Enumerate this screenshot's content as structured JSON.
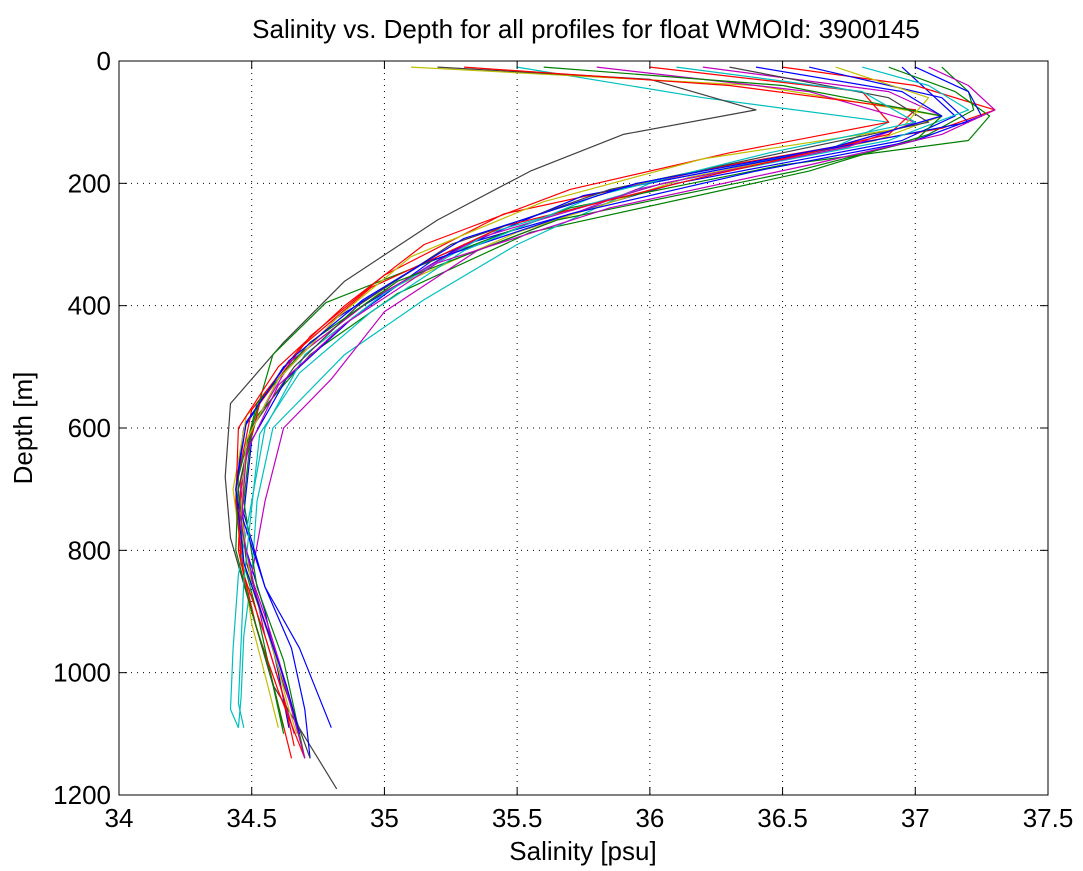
{
  "chart_data": {
    "type": "line",
    "title": "Salinity vs. Depth for all profiles for float WMOId: 3900145",
    "xlabel": "Salinity [psu]",
    "ylabel": "Depth [m]",
    "xlim": [
      34,
      37.5
    ],
    "ylim": [
      0,
      1200
    ],
    "y_reversed": true,
    "grid": true,
    "grid_style": "dotted",
    "xticks": [
      34,
      34.5,
      35,
      35.5,
      36,
      36.5,
      37,
      37.5
    ],
    "xtick_labels": [
      "34",
      "34.5",
      "35",
      "35.5",
      "36",
      "36.5",
      "37",
      "37.5"
    ],
    "yticks": [
      0,
      200,
      400,
      600,
      800,
      1000,
      1200
    ],
    "ytick_labels": [
      "0",
      "200",
      "400",
      "600",
      "800",
      "1000",
      "1200"
    ],
    "series_colors": [
      "#0000ff",
      "#008000",
      "#ff0000",
      "#00bfbf",
      "#bf00bf",
      "#bfbf00",
      "#404040"
    ],
    "series": [
      {
        "color": "#0000ff",
        "depth": [
          10,
          50,
          90,
          130,
          200,
          300,
          400,
          500,
          600,
          700,
          800,
          900,
          1000,
          1090
        ],
        "salinity": [
          36.95,
          37.05,
          37.15,
          36.95,
          36.1,
          35.3,
          34.92,
          34.62,
          34.47,
          34.44,
          34.48,
          34.55,
          34.6,
          34.64
        ]
      },
      {
        "color": "#008000",
        "depth": [
          10,
          50,
          80,
          120,
          180,
          280,
          380,
          480,
          580,
          700,
          820,
          920,
          1020,
          1100
        ],
        "salinity": [
          37.1,
          37.2,
          37.22,
          37.05,
          36.6,
          35.55,
          35.05,
          34.72,
          34.52,
          34.45,
          34.47,
          34.53,
          34.58,
          34.62
        ]
      },
      {
        "color": "#ff0000",
        "depth": [
          10,
          40,
          80,
          110,
          170,
          250,
          350,
          450,
          560,
          680,
          800,
          900,
          1000,
          1140
        ],
        "salinity": [
          36.5,
          37.0,
          37.3,
          37.1,
          36.3,
          35.45,
          35.0,
          34.72,
          34.53,
          34.46,
          34.45,
          34.5,
          34.57,
          34.65
        ]
      },
      {
        "color": "#00bfbf",
        "depth": [
          10,
          60,
          100,
          140,
          200,
          300,
          390,
          480,
          600,
          720,
          840,
          940,
          1040,
          1090
        ],
        "salinity": [
          35.5,
          36.2,
          36.9,
          36.7,
          36.0,
          35.5,
          35.15,
          34.85,
          34.58,
          34.52,
          34.5,
          34.47,
          34.46,
          34.45
        ]
      },
      {
        "color": "#bf00bf",
        "depth": [
          10,
          50,
          90,
          140,
          210,
          310,
          410,
          520,
          600,
          720,
          840,
          940,
          1040,
          1100
        ],
        "salinity": [
          36.2,
          36.9,
          37.1,
          36.7,
          35.95,
          35.35,
          35.0,
          34.8,
          34.62,
          34.55,
          34.5,
          34.55,
          34.62,
          34.66
        ]
      },
      {
        "color": "#bfbf00",
        "depth": [
          10,
          40,
          90,
          130,
          190,
          280,
          380,
          480,
          580,
          700,
          800,
          920,
          1020,
          1090
        ],
        "salinity": [
          35.1,
          36.4,
          37.1,
          36.85,
          36.15,
          35.5,
          34.98,
          34.68,
          34.48,
          34.43,
          34.46,
          34.5,
          34.56,
          34.6
        ]
      },
      {
        "color": "#404040",
        "depth": [
          10,
          30,
          80,
          120,
          180,
          260,
          360,
          460,
          560,
          680,
          780,
          900,
          1020,
          1190
        ],
        "salinity": [
          35.2,
          36.0,
          36.4,
          35.9,
          35.55,
          35.2,
          34.85,
          34.62,
          34.42,
          34.4,
          34.42,
          34.5,
          34.58,
          34.82
        ]
      },
      {
        "color": "#0000ff",
        "depth": [
          10,
          60,
          100,
          150,
          220,
          320,
          420,
          520,
          620,
          740,
          860,
          960,
          1060,
          1140
        ],
        "salinity": [
          36.6,
          37.1,
          37.2,
          36.6,
          35.75,
          35.2,
          34.88,
          34.63,
          34.5,
          34.47,
          34.55,
          34.65,
          34.7,
          34.72
        ]
      },
      {
        "color": "#008000",
        "depth": [
          10,
          50,
          90,
          130,
          170,
          240,
          340,
          395,
          480,
          600,
          720,
          860,
          980,
          1140
        ],
        "salinity": [
          36.9,
          37.15,
          37.28,
          37.2,
          36.5,
          35.7,
          35.1,
          34.78,
          34.58,
          34.5,
          34.47,
          34.52,
          34.62,
          34.7
        ]
      },
      {
        "color": "#ff0000",
        "depth": [
          10,
          50,
          100,
          150,
          210,
          300,
          400,
          500,
          600,
          720,
          840,
          940,
          1040,
          1120
        ],
        "salinity": [
          36.0,
          36.8,
          36.9,
          36.3,
          35.7,
          35.15,
          34.85,
          34.6,
          34.45,
          34.44,
          34.47,
          34.55,
          34.62,
          34.66
        ]
      },
      {
        "color": "#00bfbf",
        "depth": [
          10,
          40,
          80,
          130,
          200,
          280,
          380,
          480,
          600,
          720,
          840,
          960,
          1060,
          1090
        ],
        "salinity": [
          36.8,
          37.05,
          37.2,
          36.9,
          36.05,
          35.4,
          35.0,
          34.7,
          34.55,
          34.5,
          34.45,
          34.43,
          34.42,
          34.45
        ]
      },
      {
        "color": "#bf00bf",
        "depth": [
          10,
          50,
          100,
          140,
          200,
          290,
          390,
          490,
          600,
          700,
          820,
          920,
          1020,
          1100
        ],
        "salinity": [
          35.8,
          36.6,
          37.0,
          36.75,
          36.05,
          35.35,
          34.95,
          34.65,
          34.5,
          34.46,
          34.48,
          34.56,
          34.63,
          34.68
        ]
      },
      {
        "color": "#0000ff",
        "depth": [
          10,
          50,
          90,
          130,
          180,
          250,
          330,
          420,
          520,
          620,
          740,
          860,
          960,
          1090
        ],
        "salinity": [
          37.0,
          37.2,
          37.25,
          37.0,
          36.4,
          35.7,
          35.15,
          34.82,
          34.6,
          34.48,
          34.46,
          34.55,
          34.68,
          34.8
        ]
      },
      {
        "color": "#ff0000",
        "depth": [
          10,
          40,
          80,
          120,
          190,
          270,
          370,
          470,
          570,
          700,
          820,
          930,
          1030,
          1140
        ],
        "salinity": [
          35.3,
          36.3,
          37.0,
          36.9,
          36.2,
          35.45,
          34.95,
          34.68,
          34.5,
          34.44,
          34.46,
          34.52,
          34.6,
          34.7
        ]
      },
      {
        "color": "#404040",
        "depth": [
          10,
          60,
          100,
          150,
          210,
          300,
          400,
          500,
          600,
          700,
          820,
          920,
          1020,
          1140
        ],
        "salinity": [
          36.3,
          36.9,
          37.05,
          36.5,
          35.85,
          35.25,
          34.9,
          34.66,
          34.5,
          34.45,
          34.48,
          34.55,
          34.62,
          34.72
        ]
      },
      {
        "color": "#008000",
        "depth": [
          10,
          40,
          90,
          130,
          180,
          260,
          360,
          460,
          560,
          680,
          800,
          900,
          1000,
          1090
        ],
        "salinity": [
          35.6,
          36.5,
          37.1,
          37.0,
          36.55,
          35.65,
          35.05,
          34.72,
          34.52,
          34.45,
          34.44,
          34.5,
          34.57,
          34.62
        ]
      },
      {
        "color": "#bfbf00",
        "depth": [
          10,
          60,
          110,
          160,
          230,
          320,
          420,
          520,
          620,
          740,
          860,
          960,
          1060,
          1100
        ],
        "salinity": [
          36.7,
          37.05,
          36.95,
          36.2,
          35.6,
          35.1,
          34.82,
          34.6,
          34.48,
          34.46,
          34.5,
          34.58,
          34.64,
          34.67
        ]
      },
      {
        "color": "#00bfbf",
        "depth": [
          10,
          50,
          100,
          150,
          220,
          310,
          410,
          510,
          610,
          730,
          850,
          950,
          1050,
          1090
        ],
        "salinity": [
          36.1,
          36.8,
          37.0,
          36.45,
          35.8,
          35.3,
          34.95,
          34.68,
          34.53,
          34.5,
          34.47,
          34.46,
          34.45,
          34.47
        ]
      },
      {
        "color": "#bf00bf",
        "depth": [
          10,
          40,
          80,
          120,
          170,
          240,
          330,
          430,
          530,
          640,
          760,
          880,
          980,
          1140
        ],
        "salinity": [
          37.05,
          37.2,
          37.3,
          37.1,
          36.6,
          35.85,
          35.2,
          34.85,
          34.6,
          34.48,
          34.46,
          34.52,
          34.6,
          34.7
        ]
      },
      {
        "color": "#0000ff",
        "depth": [
          10,
          50,
          90,
          140,
          200,
          290,
          390,
          490,
          590,
          700,
          820,
          920,
          1020,
          1100
        ],
        "salinity": [
          36.4,
          36.95,
          37.1,
          36.7,
          35.95,
          35.3,
          34.92,
          34.64,
          34.48,
          34.44,
          34.47,
          34.55,
          34.63,
          34.68
        ]
      }
    ]
  }
}
